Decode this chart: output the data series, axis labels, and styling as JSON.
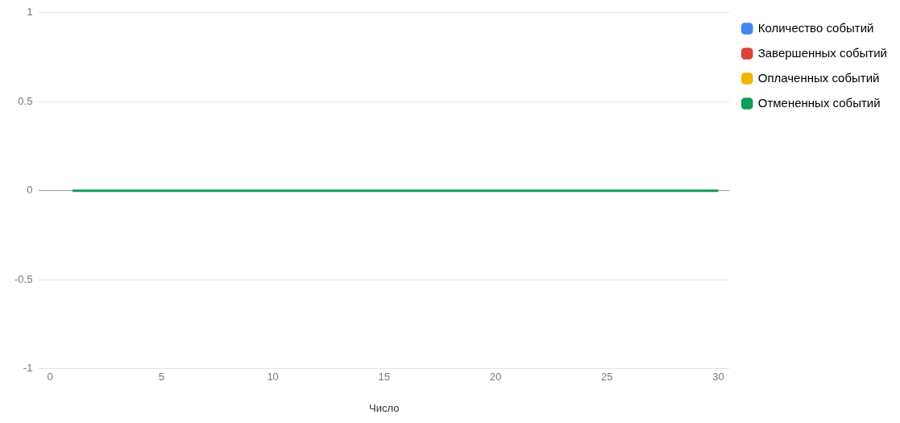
{
  "chart_data": {
    "type": "line",
    "xlabel": "Число",
    "x": [
      1,
      30
    ],
    "series": [
      {
        "name": "Количество событий",
        "color": "#4285f4",
        "values": [
          null,
          null
        ]
      },
      {
        "name": "Завершенных событий",
        "color": "#db4437",
        "values": [
          null,
          null
        ]
      },
      {
        "name": "Оплаченных событий",
        "color": "#f4b400",
        "values": [
          null,
          null
        ]
      },
      {
        "name": "Отмененных событий",
        "color": "#0f9d58",
        "values": [
          0,
          0
        ]
      }
    ],
    "xlim": [
      -0.5,
      30.5
    ],
    "xticks": [
      0,
      5,
      10,
      15,
      20,
      25,
      30
    ],
    "ylim": [
      -1,
      1
    ],
    "yticks": [
      -1,
      -0.5,
      0,
      0.5,
      1
    ],
    "grid": "y",
    "legend": "top right",
    "marker": "none",
    "line_style": "solid"
  }
}
